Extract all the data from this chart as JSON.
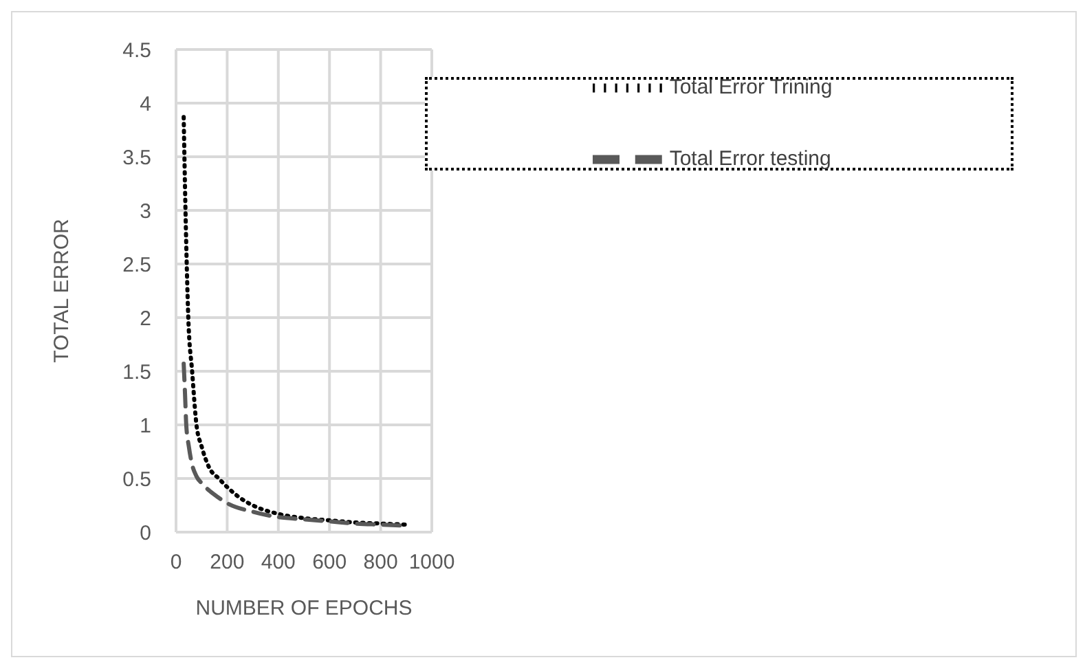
{
  "chart_data": {
    "type": "line",
    "xlabel": "NUMBER OF EPOCHS",
    "ylabel": "TOTAL ERROR",
    "xlim": [
      0,
      1000
    ],
    "xticks": [
      0,
      200,
      400,
      600,
      800,
      1000
    ],
    "ylim": [
      0,
      4.5
    ],
    "yticks": [
      0,
      0.5,
      1,
      1.5,
      2,
      2.5,
      3,
      3.5,
      4,
      4.5
    ],
    "grid": true,
    "legend": "top right",
    "marker": "none",
    "series": [
      {
        "name": "Total Error Trining",
        "color": "#000000",
        "line_style": "dotted",
        "x": [
          30,
          37,
          48,
          63,
          80,
          100,
          130,
          167,
          200,
          250,
          300,
          400,
          500,
          600,
          700,
          800,
          900
        ],
        "values": [
          3.87,
          3.0,
          2.0,
          1.5,
          1.0,
          0.8,
          0.6,
          0.5,
          0.42,
          0.32,
          0.25,
          0.17,
          0.13,
          0.11,
          0.09,
          0.08,
          0.07
        ]
      },
      {
        "name": "Total Error testing",
        "color": "#595959",
        "line_style": "dashed",
        "x": [
          30,
          35,
          40,
          50,
          60,
          80,
          103,
          150,
          200,
          300,
          400,
          500,
          600,
          700,
          800,
          900
        ],
        "values": [
          1.57,
          1.3,
          1.0,
          0.8,
          0.66,
          0.52,
          0.45,
          0.35,
          0.27,
          0.19,
          0.14,
          0.12,
          0.1,
          0.08,
          0.07,
          0.06
        ]
      }
    ]
  }
}
